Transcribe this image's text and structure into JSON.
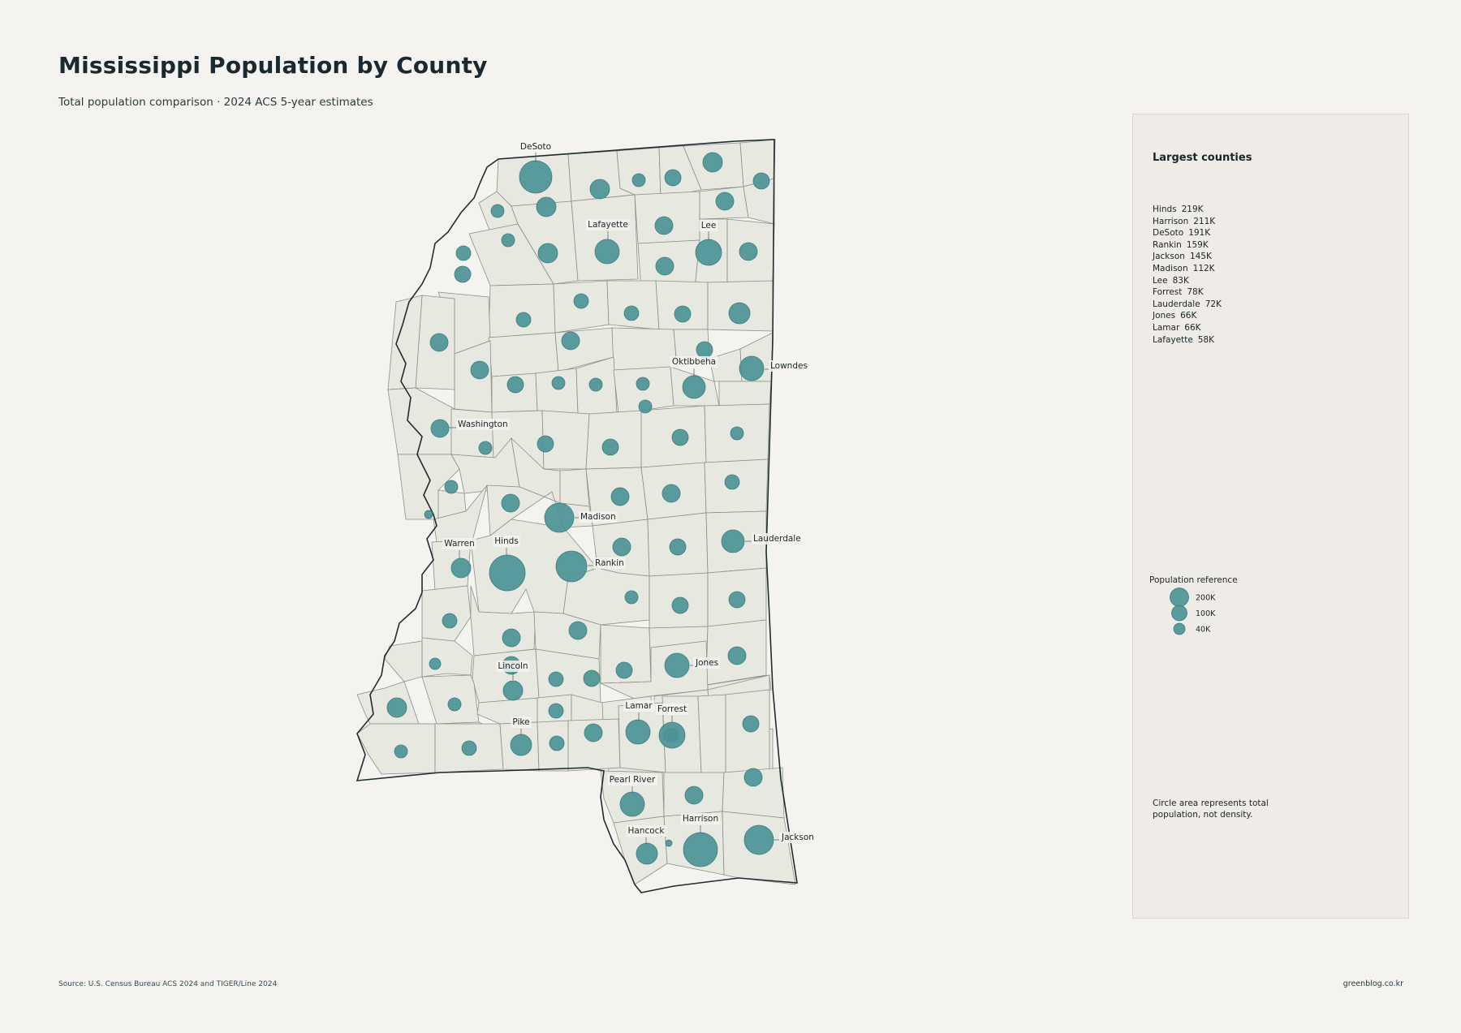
{
  "header": {
    "title": "Mississippi Population by County",
    "subtitle": "Total population comparison · 2024 ACS 5-year estimates"
  },
  "colors": {
    "background": "#f5f3ef",
    "county_fill": "#e7e8e0",
    "county_border": "#8a9088",
    "bubble": "#4d9496",
    "panel": "#efece7"
  },
  "map": {
    "labeled_counties": [
      {
        "name": "DeSoto"
      },
      {
        "name": "Lafayette"
      },
      {
        "name": "Lee"
      },
      {
        "name": "Oktibbeha"
      },
      {
        "name": "Lowndes"
      },
      {
        "name": "Washington"
      },
      {
        "name": "Madison"
      },
      {
        "name": "Lauderdale"
      },
      {
        "name": "Warren"
      },
      {
        "name": "Hinds"
      },
      {
        "name": "Rankin"
      },
      {
        "name": "Jones"
      },
      {
        "name": "Lincoln"
      },
      {
        "name": "Lamar"
      },
      {
        "name": "Forrest"
      },
      {
        "name": "Pike"
      },
      {
        "name": "Pearl River"
      },
      {
        "name": "Harrison"
      },
      {
        "name": "Hancock"
      },
      {
        "name": "Jackson"
      }
    ]
  },
  "panel": {
    "title": "Largest counties",
    "top_counties": [
      {
        "name": "Hinds",
        "pop": "219K"
      },
      {
        "name": "Harrison",
        "pop": "211K"
      },
      {
        "name": "DeSoto",
        "pop": "191K"
      },
      {
        "name": "Rankin",
        "pop": "159K"
      },
      {
        "name": "Jackson",
        "pop": "145K"
      },
      {
        "name": "Madison",
        "pop": "112K"
      },
      {
        "name": "Lee",
        "pop": "83K"
      },
      {
        "name": "Forrest",
        "pop": "78K"
      },
      {
        "name": "Lauderdale",
        "pop": "72K"
      },
      {
        "name": "Jones",
        "pop": "66K"
      },
      {
        "name": "Lamar",
        "pop": "66K"
      },
      {
        "name": "Lafayette",
        "pop": "58K"
      }
    ],
    "reference": {
      "title": "Population reference",
      "items": [
        {
          "label": "200K",
          "value": 200000
        },
        {
          "label": "100K",
          "value": 100000
        },
        {
          "label": "40K",
          "value": 40000
        }
      ]
    },
    "note": "Circle area represents total population, not density."
  },
  "footer": {
    "source": "Source: U.S. Census Bureau ACS 2024 and TIGER/Line 2024",
    "credit": "greenblog.co.kr"
  }
}
